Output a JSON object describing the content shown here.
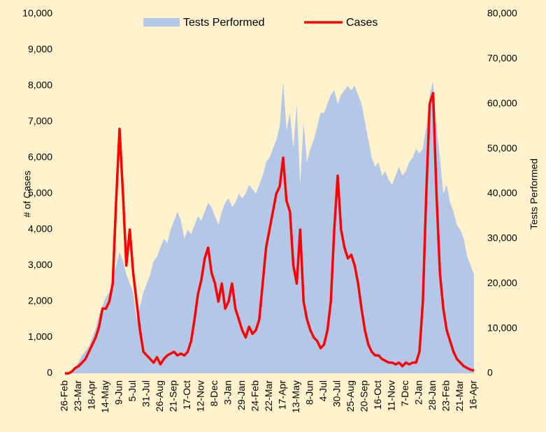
{
  "chart_data": {
    "type": "area_line",
    "categories": [
      "26-Feb",
      null,
      null,
      null,
      "23-Mar",
      null,
      null,
      null,
      "18-Apr",
      null,
      null,
      null,
      "14-May",
      null,
      null,
      null,
      "9-Jun",
      null,
      null,
      null,
      "5-Jul",
      null,
      null,
      null,
      "31-Jul",
      null,
      null,
      null,
      "26-Aug",
      null,
      null,
      null,
      "21-Sep",
      null,
      null,
      null,
      "17-Oct",
      null,
      null,
      null,
      "12-Nov",
      null,
      null,
      null,
      "8-Dec",
      null,
      null,
      null,
      "3-Jan",
      null,
      null,
      null,
      "29-Jan",
      null,
      null,
      null,
      "24-Feb",
      null,
      null,
      null,
      "22-Mar",
      null,
      null,
      null,
      "17-Apr",
      null,
      null,
      null,
      "13-May",
      null,
      null,
      null,
      "8-Jun",
      null,
      null,
      null,
      "4-Jul",
      null,
      null,
      null,
      "30-Jul",
      null,
      null,
      null,
      "25-Aug",
      null,
      null,
      null,
      "20-Sep",
      null,
      null,
      null,
      "16-Oct",
      null,
      null,
      null,
      "11-Nov",
      null,
      null,
      null,
      "7-Dec",
      null,
      null,
      null,
      "2-Jan",
      null,
      null,
      null,
      "28-Jan",
      null,
      null,
      null,
      "23-Feb",
      null,
      null,
      null,
      "21-Mar",
      null,
      null,
      null,
      "16-Apr"
    ],
    "series": [
      {
        "name": "Tests Performed",
        "color": "#b4c7e7",
        "axis": "y2",
        "kind": "area",
        "values": [
          0,
          0,
          500,
          1500,
          2500,
          4000,
          5000,
          6000,
          8000,
          10000,
          13000,
          15000,
          17000,
          18000,
          21000,
          24000,
          27000,
          25000,
          22000,
          20000,
          18000,
          12000,
          15000,
          18000,
          20000,
          22000,
          25000,
          26000,
          28000,
          30000,
          29000,
          32000,
          34000,
          36000,
          34000,
          30000,
          32000,
          31000,
          33000,
          35000,
          34000,
          36000,
          38000,
          37000,
          35000,
          33000,
          36000,
          38000,
          39000,
          37000,
          38000,
          40000,
          39000,
          40000,
          42000,
          41000,
          40000,
          42000,
          44000,
          47000,
          48000,
          50000,
          52000,
          55000,
          65000,
          54000,
          58000,
          50000,
          60000,
          42000,
          56000,
          47000,
          50000,
          52000,
          55000,
          58000,
          58000,
          60000,
          62000,
          63000,
          60000,
          62000,
          63000,
          64000,
          63000,
          64000,
          62000,
          60000,
          56000,
          52000,
          48000,
          46000,
          47000,
          44000,
          45000,
          43000,
          42000,
          44000,
          46000,
          44000,
          45000,
          47000,
          48000,
          50000,
          49000,
          50000,
          55000,
          62000,
          65000,
          55000,
          48000,
          40000,
          42000,
          38000,
          36000,
          33000,
          32000,
          30000,
          26000,
          24000,
          22000
        ]
      },
      {
        "name": "Cases",
        "color": "#ff0000",
        "kind": "line",
        "values": [
          0,
          0,
          50,
          150,
          200,
          300,
          400,
          600,
          800,
          1000,
          1300,
          1800,
          1800,
          2000,
          2500,
          4800,
          6800,
          5000,
          3000,
          4000,
          2800,
          2000,
          1200,
          600,
          500,
          400,
          300,
          450,
          250,
          400,
          500,
          550,
          600,
          500,
          550,
          500,
          600,
          900,
          1500,
          2200,
          2600,
          3200,
          3500,
          2800,
          2500,
          2000,
          2500,
          1800,
          2000,
          2500,
          1800,
          1500,
          1200,
          1000,
          1300,
          1100,
          1200,
          1500,
          2500,
          3500,
          4000,
          4500,
          5000,
          5200,
          6000,
          4800,
          4500,
          3000,
          2500,
          4000,
          2000,
          1500,
          1200,
          1000,
          900,
          700,
          800,
          1200,
          2000,
          4000,
          5500,
          4000,
          3500,
          3200,
          3300,
          3000,
          2500,
          1800,
          1200,
          800,
          600,
          500,
          500,
          400,
          350,
          300,
          300,
          250,
          300,
          200,
          300,
          250,
          300,
          300,
          600,
          2000,
          5000,
          7500,
          7800,
          5000,
          2800,
          1800,
          1200,
          900,
          600,
          400,
          300,
          200,
          150,
          100,
          80
        ]
      }
    ],
    "y_label": "# of Cases",
    "y2_label": "Tests Performed",
    "ylim": [
      0,
      10000
    ],
    "yticks": [
      0,
      {
        "value": 1000,
        "label": "1,000"
      },
      {
        "value": 2000,
        "label": "2,000"
      },
      {
        "value": 3000,
        "label": "3,000"
      },
      {
        "value": 4000,
        "label": "4,000"
      },
      {
        "value": 5000,
        "label": "5,000"
      },
      {
        "value": 6000,
        "label": "6,000"
      },
      {
        "value": 7000,
        "label": "7,000"
      },
      {
        "value": 8000,
        "label": "8,000"
      },
      {
        "value": 9000,
        "label": "9,000"
      },
      {
        "value": 10000,
        "label": "10,000"
      }
    ],
    "y2lim": [
      0,
      80000
    ],
    "y2ticks": [
      0,
      {
        "value": 10000,
        "label": "10,000"
      },
      {
        "value": 20000,
        "label": "20,000"
      },
      {
        "value": 30000,
        "label": "30,000"
      },
      {
        "value": 40000,
        "label": "40,000"
      },
      {
        "value": 50000,
        "label": "50,000"
      },
      {
        "value": 60000,
        "label": "60,000"
      },
      {
        "value": 70000,
        "label": "70,000"
      },
      {
        "value": 80000,
        "label": "80,000"
      }
    ],
    "legend": "top"
  }
}
